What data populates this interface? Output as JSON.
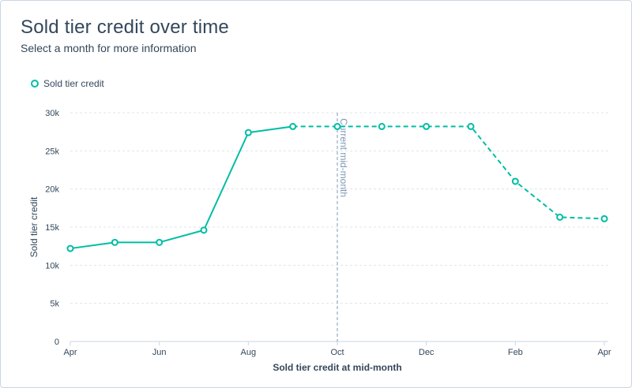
{
  "header": {
    "title": "Sold tier credit over time",
    "subtitle": "Select a month for more information"
  },
  "colors": {
    "series": "#00bda5",
    "grid": "#dfe3eb",
    "axis": "#cbd6e2",
    "marker_line": "#7c98b6",
    "text": "#33475b"
  },
  "chart_data": {
    "type": "line",
    "title": "Sold tier credit over time",
    "subtitle": "Select a month for more information",
    "xlabel": "Sold tier credit at mid-month",
    "ylabel": "Sold tier credit",
    "legend": {
      "position": "top-left",
      "entries": [
        "Sold tier credit"
      ]
    },
    "grid": true,
    "x_ticks": [
      "Apr",
      "Jun",
      "Aug",
      "Oct",
      "Dec",
      "Feb",
      "Apr"
    ],
    "y_ticks": [
      "0",
      "5k",
      "10k",
      "15k",
      "20k",
      "25k",
      "30k"
    ],
    "ylim": [
      0,
      30000
    ],
    "x": [
      "Apr",
      "May",
      "Jun",
      "Jul",
      "Aug",
      "Sep",
      "Oct",
      "Nov",
      "Dec",
      "Jan",
      "Feb",
      "Mar",
      "Apr"
    ],
    "series": [
      {
        "name": "Sold tier credit",
        "values": [
          12200,
          13000,
          13000,
          14600,
          27400,
          28200,
          28200,
          28200,
          28200,
          28200,
          21000,
          16300,
          16100
        ],
        "actual_through_index": 5,
        "projected_style": "dashed"
      }
    ],
    "annotations": [
      {
        "text": "Current mid-month",
        "x": "Oct",
        "style": "vertical-dashed-line"
      }
    ]
  }
}
